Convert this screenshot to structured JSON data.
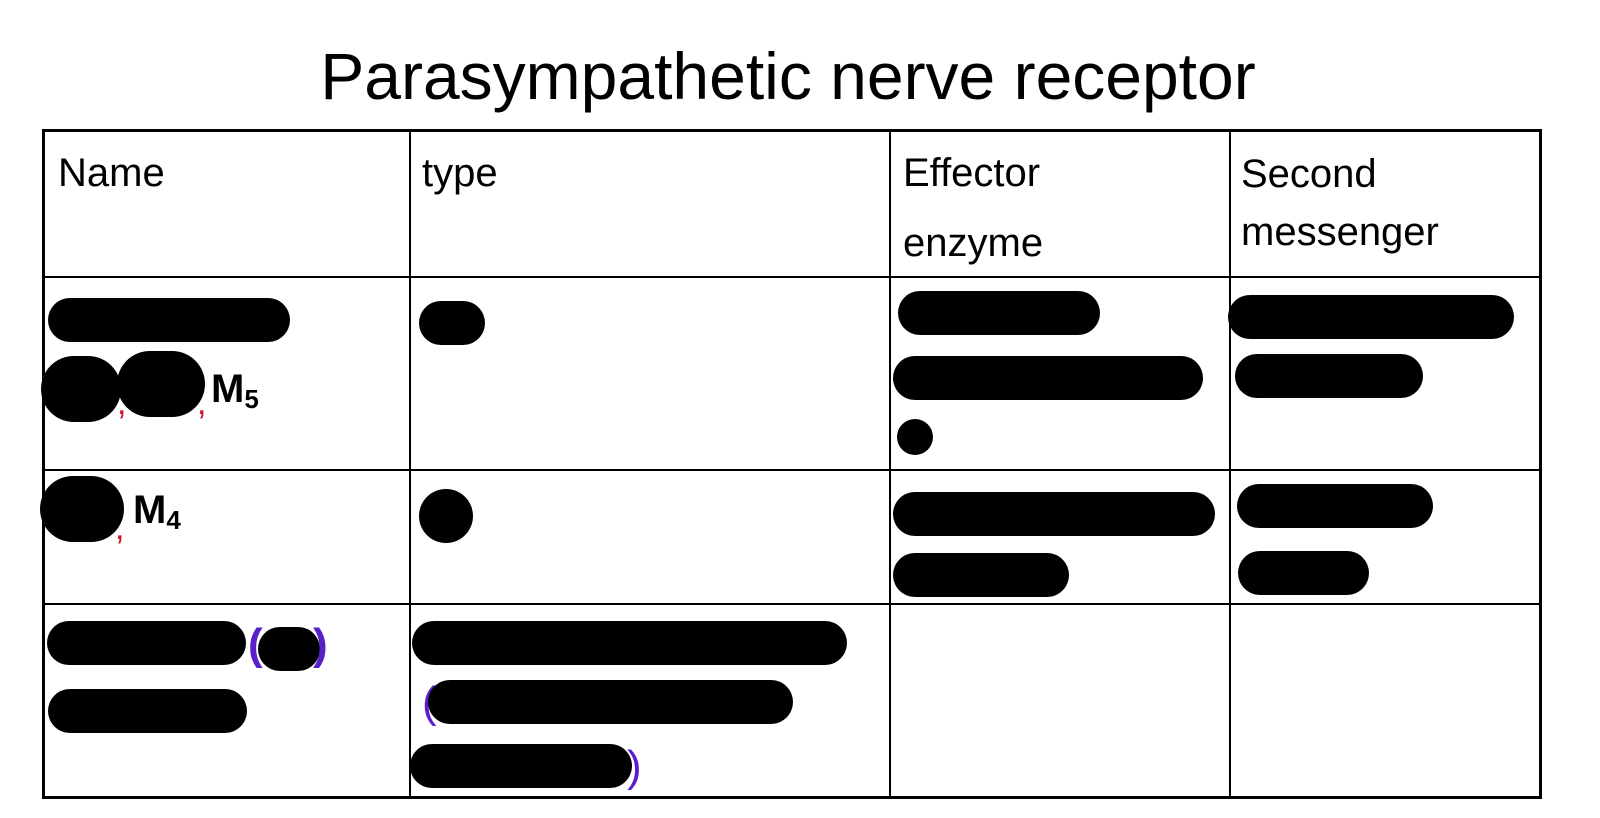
{
  "title": "Parasympathetic nerve receptor",
  "table": {
    "headers": {
      "name": "Name",
      "type": "type",
      "effector_line1": "Effector",
      "effector_line2": "enzyme",
      "second_line1": "Second",
      "second_line2": "messenger"
    },
    "rows": [
      {
        "name_visible": "M",
        "name_visible_sub": "5",
        "separator": ","
      },
      {
        "name_visible": "M",
        "name_visible_sub": "4",
        "separator": ","
      },
      {
        "paren_open": "(",
        "paren_close": ")"
      }
    ]
  },
  "colors": {
    "separator_red": "#c8141e",
    "paren_purple": "#5a1fc8",
    "redaction": "#000000"
  }
}
